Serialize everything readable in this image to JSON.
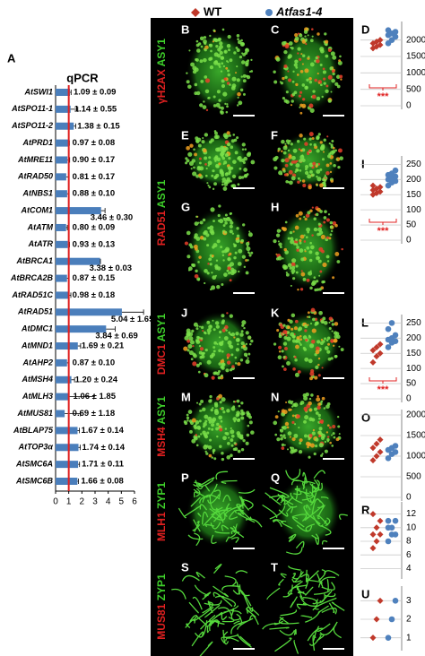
{
  "panel_label_a": "A",
  "legend": {
    "wt": "WT",
    "wt_color": "#c0392b",
    "mutant": "Atfas1-4",
    "mutant_color": "#4f81bd"
  },
  "image_rows": [
    [
      "B",
      "C"
    ],
    [
      "E",
      "F"
    ],
    [
      "G",
      "H"
    ],
    [
      "J",
      "K"
    ],
    [
      "M",
      "N"
    ],
    [
      "P",
      "Q"
    ],
    [
      "S",
      "T"
    ]
  ],
  "row_labels": [
    {
      "red": "γH2AX",
      "green": "ASY1"
    },
    {
      "red": "RAD51",
      "green": "ASY1"
    },
    {
      "red": "DMC1",
      "green": "ASY1"
    },
    {
      "red": "MSH4",
      "green": "ASY1"
    },
    {
      "red": "MLH1",
      "green": "ZYP1"
    },
    {
      "red": "MUS81",
      "green": "ZYP1"
    }
  ],
  "chart_data": [
    {
      "type": "hbar",
      "title": "qPCR",
      "color": "#4a7ebb",
      "reference_line": 1,
      "reference_color": "#e02020",
      "categories": [
        "AtSWI1",
        "AtSPO11-1",
        "AtSPO11-2",
        "AtPRD1",
        "AtMRE11",
        "AtRAD50",
        "AtNBS1",
        "AtCOM1",
        "AtATM",
        "AtATR",
        "AtBRCA1",
        "AtBRCA2B",
        "AtRAD51C",
        "AtRAD51",
        "AtDMC1",
        "AtMND1",
        "AtAHP2",
        "AtMSH4",
        "AtMLH3",
        "AtMUS81",
        "AtBLAP75",
        "AtTOP3α",
        "AtSMC6A",
        "AtSMC6B"
      ],
      "values": [
        1.09,
        1.14,
        1.38,
        0.97,
        0.9,
        0.81,
        0.88,
        3.46,
        0.8,
        0.93,
        3.38,
        0.87,
        0.98,
        5.04,
        3.84,
        1.69,
        0.87,
        1.2,
        1.06,
        0.69,
        1.67,
        1.74,
        1.71,
        1.66
      ],
      "errors": [
        0.09,
        0.55,
        0.15,
        0.08,
        0.17,
        0.17,
        0.1,
        0.3,
        0.09,
        0.13,
        0.03,
        0.15,
        0.18,
        1.65,
        0.69,
        0.21,
        0.1,
        0.24,
        1.85,
        1.18,
        0.14,
        0.14,
        0.11,
        0.08
      ],
      "value_labels": [
        "1.09 ± 0.09",
        "1.14 ± 0.55",
        "1.38 ± 0.15",
        "0.97 ± 0.08",
        "0.90 ± 0.17",
        "0.81 ± 0.17",
        "0.88 ± 0.10",
        "3.46 ± 0.30",
        "0.80 ± 0.09",
        "0.93 ± 0.13",
        "3.38 ± 0.03",
        "0.87 ± 0.15",
        "0.98 ± 0.18",
        "5.04 ± 1.65",
        "3.84 ± 0.69",
        "1.69 ± 0.21",
        "0.87 ± 0.10",
        "1.20 ± 0.24",
        "1.06 ± 1.85",
        "0.69 ± 1.18",
        "1.67 ± 0.14",
        "1.74 ± 0.14",
        "1.71 ± 0.11",
        "1.66 ± 0.08"
      ],
      "xlim": [
        0,
        6
      ],
      "xticks": [
        0,
        1,
        2,
        3,
        4,
        5,
        6
      ]
    },
    {
      "type": "strip",
      "label": "D",
      "ylim": [
        0,
        2400
      ],
      "yticks": [
        0,
        500,
        1000,
        1500,
        2000
      ],
      "annotation": "***",
      "series": [
        {
          "color": "#c0392b",
          "values": [
            1750,
            1800,
            1850,
            1900,
            1950,
            2000
          ]
        },
        {
          "color": "#4f81bd",
          "values": [
            1900,
            2000,
            2100,
            2150,
            2200,
            2250,
            2300
          ]
        }
      ]
    },
    {
      "type": "strip",
      "label": "I",
      "ylim": [
        0,
        260
      ],
      "yticks": [
        0,
        50,
        100,
        150,
        200,
        250
      ],
      "annotation": "***",
      "series": [
        {
          "color": "#c0392b",
          "values": [
            150,
            155,
            160,
            165,
            170,
            175,
            180
          ]
        },
        {
          "color": "#4f81bd",
          "values": [
            180,
            190,
            195,
            200,
            205,
            210,
            215,
            220,
            230
          ]
        }
      ]
    },
    {
      "type": "strip",
      "label": "L",
      "ylim": [
        0,
        260
      ],
      "yticks": [
        0,
        50,
        100,
        150,
        200,
        250
      ],
      "annotation": "***",
      "series": [
        {
          "color": "#c0392b",
          "values": [
            120,
            140,
            150,
            160,
            170,
            180
          ]
        },
        {
          "color": "#4f81bd",
          "values": [
            170,
            185,
            190,
            195,
            200,
            210,
            230,
            250
          ]
        }
      ]
    },
    {
      "type": "strip",
      "label": "O",
      "ylim": [
        0,
        2000
      ],
      "yticks": [
        0,
        500,
        1000,
        1500,
        2000
      ],
      "series": [
        {
          "color": "#c0392b",
          "values": [
            900,
            1000,
            1100,
            1200,
            1300,
            1400
          ]
        },
        {
          "color": "#4f81bd",
          "values": [
            950,
            1050,
            1100,
            1150,
            1200,
            1250
          ]
        }
      ]
    },
    {
      "type": "strip",
      "label": "R",
      "ylim": [
        3,
        13
      ],
      "yticks": [
        4,
        6,
        8,
        10,
        12
      ],
      "series": [
        {
          "color": "#c0392b",
          "values": [
            7,
            8,
            9,
            9,
            10,
            11,
            12
          ]
        },
        {
          "color": "#4f81bd",
          "values": [
            8,
            9,
            9,
            10,
            10,
            11,
            11
          ]
        }
      ]
    },
    {
      "type": "strip",
      "label": "U",
      "ylim": [
        0.5,
        3.5
      ],
      "yticks": [
        1,
        2,
        3
      ],
      "series": [
        {
          "color": "#c0392b",
          "values": [
            1,
            2,
            3
          ]
        },
        {
          "color": "#4f81bd",
          "values": [
            1,
            2,
            3
          ]
        }
      ]
    }
  ]
}
